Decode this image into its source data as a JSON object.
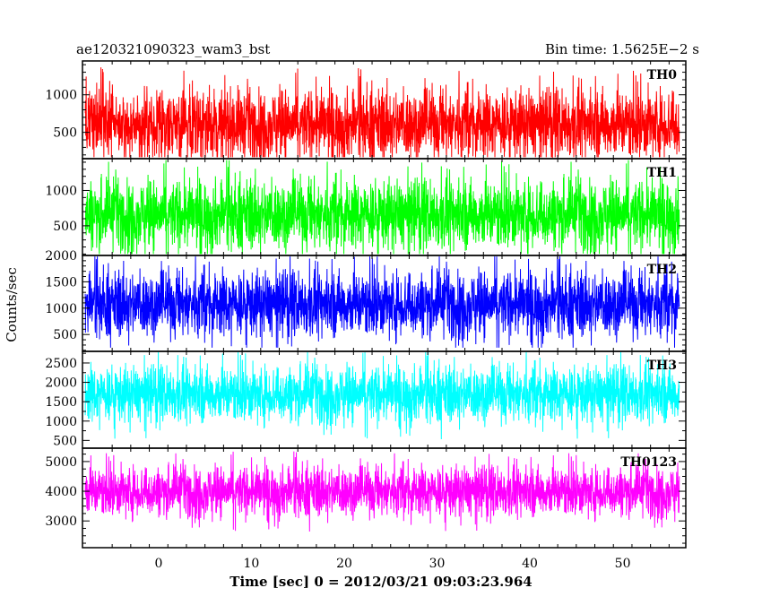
{
  "header": {
    "left_title": "ae120321090323_wam3_bst",
    "right_title": "Bin time: 1.5625E−2 s"
  },
  "axes": {
    "ylabel": "Counts/sec",
    "xlabel": "Time [sec] 0 = 2012/03/21 09:03:23.964"
  },
  "chart_data": {
    "type": "line",
    "title": "ae120321090323_wam3_bst",
    "bin_time": "1.5625E-2 s",
    "xlabel": "Time [sec] 0 = 2012/03/21 09:03:23.964",
    "ylabel": "Counts/sec",
    "xlim": [
      -8.2,
      56.8
    ],
    "x_data_range": [
      -7.9,
      56.1
    ],
    "x_ticks": [
      0,
      10,
      20,
      30,
      40,
      50
    ],
    "grid": false,
    "panels": [
      {
        "name": "TH0",
        "color": "#ff0000",
        "ylim": [
          150,
          1450
        ],
        "y_ticks": [
          500,
          1000
        ],
        "base_level": 610,
        "spread": 360,
        "approx_min": 170,
        "approx_max": 1430
      },
      {
        "name": "TH1",
        "color": "#00ff00",
        "ylim": [
          80,
          1450
        ],
        "y_ticks": [
          500,
          1000
        ],
        "base_level": 660,
        "spread": 380,
        "approx_min": 100,
        "approx_max": 1430
      },
      {
        "name": "TH2",
        "color": "#0000ff",
        "ylim": [
          180,
          2000
        ],
        "y_ticks": [
          500,
          1000,
          1500,
          2000
        ],
        "base_level": 1080,
        "spread": 480,
        "approx_min": 250,
        "approx_max": 1980
      },
      {
        "name": "TH3",
        "color": "#00ffff",
        "ylim": [
          300,
          2800
        ],
        "y_ticks": [
          500,
          1000,
          1500,
          2000,
          2500
        ],
        "base_level": 1700,
        "spread": 560,
        "approx_min": 450,
        "approx_max": 2780
      },
      {
        "name": "TH0123",
        "color": "#ff00ff",
        "ylim": [
          2100,
          5450
        ],
        "y_ticks": [
          3000,
          4000,
          5000
        ],
        "base_level": 4000,
        "spread": 650,
        "approx_min": 2200,
        "approx_max": 5400
      }
    ]
  }
}
